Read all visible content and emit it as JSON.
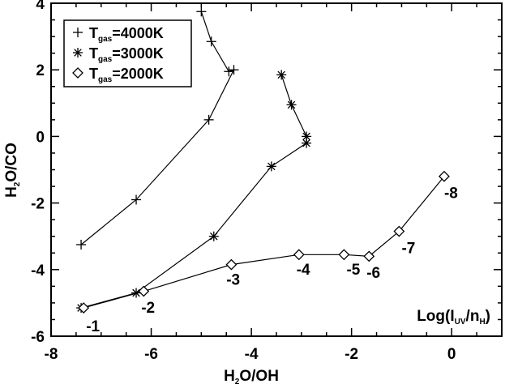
{
  "chart_data": {
    "type": "line",
    "title": "",
    "xlabel": {
      "main": "H",
      "sub": "2",
      "rest": "O/OH"
    },
    "ylabel": {
      "main": "H",
      "sub": "2",
      "rest": "O/CO"
    },
    "xlim": [
      -8,
      1
    ],
    "ylim": [
      -6,
      4
    ],
    "xticks": [
      -8,
      -6,
      -4,
      -2,
      0
    ],
    "yticks": [
      -6,
      -4,
      -2,
      0,
      2,
      4
    ],
    "x_tick_labels": [
      "-8",
      "-6",
      "-4",
      "-2",
      "0"
    ],
    "y_tick_labels": [
      "-6",
      "-4",
      "-2",
      "0",
      "2",
      "4"
    ],
    "grid": false,
    "legend_position": "top-left",
    "legend_label_prefix": "T",
    "legend_label_sub": "gas",
    "series": [
      {
        "name": "=4000K",
        "marker": "plus",
        "x": [
          -7.4,
          -6.3,
          -4.85,
          -4.35,
          -4.45,
          -4.8,
          -5.0
        ],
        "y": [
          -3.25,
          -1.9,
          0.5,
          2.0,
          1.95,
          2.85,
          3.75
        ]
      },
      {
        "name": "=3000K",
        "marker": "asterisk",
        "x": [
          -7.4,
          -6.3,
          -4.75,
          -3.6,
          -2.9,
          -2.9,
          -3.2,
          -3.4
        ],
        "y": [
          -5.15,
          -4.7,
          -3.0,
          -0.9,
          -0.2,
          0.0,
          0.95,
          1.85
        ]
      },
      {
        "name": "=2000K",
        "marker": "diamond",
        "x": [
          -7.35,
          -6.15,
          -4.4,
          -3.05,
          -2.15,
          -1.65,
          -1.05,
          -0.15
        ],
        "y": [
          -5.15,
          -4.65,
          -3.85,
          -3.55,
          -3.55,
          -3.6,
          -2.85,
          -1.2
        ]
      }
    ],
    "point_labels": [
      {
        "text": "-1",
        "x": -7.3,
        "y": -5.85
      },
      {
        "text": "-2",
        "x": -6.2,
        "y": -5.3
      },
      {
        "text": "-3",
        "x": -4.5,
        "y": -4.45
      },
      {
        "text": "-4",
        "x": -3.1,
        "y": -4.15
      },
      {
        "text": "-5",
        "x": -2.1,
        "y": -4.15
      },
      {
        "text": "-6",
        "x": -1.7,
        "y": -4.25
      },
      {
        "text": "-7",
        "x": -1.0,
        "y": -3.5
      },
      {
        "text": "-8",
        "x": -0.15,
        "y": -1.85
      }
    ],
    "annotation": {
      "prefix": "Log(I",
      "sub1": "UV",
      "mid": "/n",
      "sub2": "H",
      "suffix": ")"
    }
  }
}
